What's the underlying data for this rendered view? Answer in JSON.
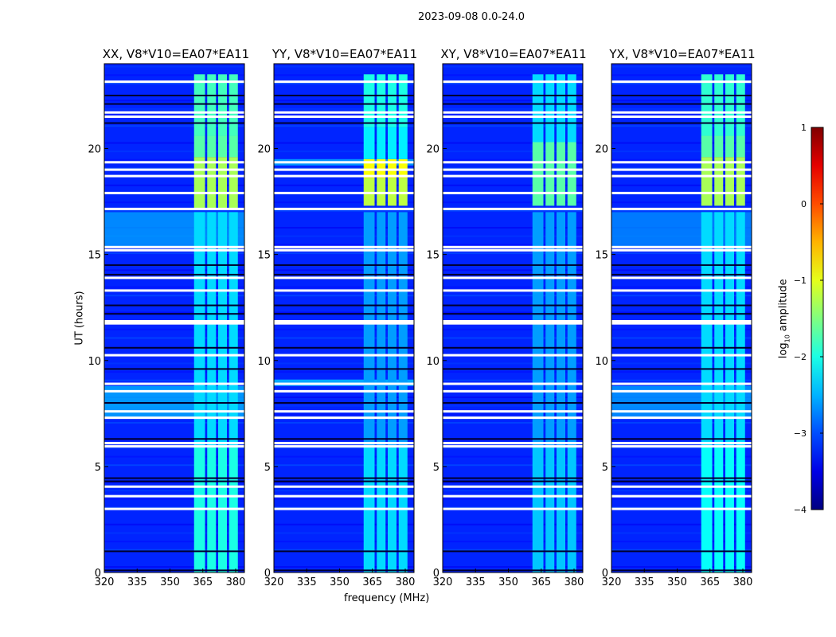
{
  "chart_data": {
    "type": "heatmap",
    "title": "2023-09-08 0.0-24.0",
    "xlabel": "frequency (MHz)",
    "ylabel": "UT (hours)",
    "xlim": [
      320,
      384
    ],
    "ylim": [
      0,
      24
    ],
    "xticks": [
      "320",
      "335",
      "350",
      "365",
      "380"
    ],
    "xtick_values": [
      320,
      335,
      350,
      365,
      380
    ],
    "yticks": [
      "0",
      "5",
      "10",
      "15",
      "20"
    ],
    "ytick_values": [
      0,
      5,
      10,
      15,
      20
    ],
    "colorbar": {
      "label": "log10 amplitude",
      "label_main": "log",
      "label_sub": "10",
      "label_rest": " amplitude",
      "range": [
        -4,
        1
      ],
      "ticks": [
        "1",
        "0",
        "−1",
        "−2",
        "−3",
        "−4"
      ],
      "tick_values": [
        1,
        0,
        -1,
        -2,
        -3,
        -4
      ],
      "colormap": "jet"
    },
    "background_level": -3.2,
    "flagged_hours_white": [
      23.15,
      21.7,
      21.5,
      19.35,
      19.0,
      18.7,
      17.9,
      17.15,
      15.35,
      15.2,
      13.9,
      13.3,
      11.85,
      11.75,
      10.25,
      8.9,
      8.55,
      7.6,
      7.3,
      6.1,
      5.95,
      4.05,
      3.6,
      3.0
    ],
    "dark_hours": [
      22.5,
      22.1,
      21.2,
      14.5,
      14.05,
      12.6,
      12.2,
      10.6,
      9.6,
      8.0,
      6.3,
      4.45,
      4.3,
      1.0,
      0.1
    ],
    "rfi_subbands_mhz": [
      [
        361,
        366
      ],
      [
        367,
        371
      ],
      [
        372,
        376
      ],
      [
        377,
        381
      ]
    ],
    "panels": [
      {
        "title": "XX, V8*V10=EA07*EA11",
        "rfi": [
          [
            0,
            6,
            -2.0
          ],
          [
            6,
            17,
            -2.3
          ],
          [
            17.2,
            19.6,
            -1.3
          ],
          [
            19.6,
            20.6,
            -1.7
          ],
          [
            20.6,
            23.5,
            -1.8
          ]
        ],
        "broadband": [
          [
            7.3,
            8.8,
            -2.4
          ],
          [
            15.3,
            17,
            -2.5
          ]
        ]
      },
      {
        "title": "YY, V8*V10=EA07*EA11",
        "rfi": [
          [
            0,
            6,
            -2.3
          ],
          [
            6,
            17,
            -2.6
          ],
          [
            17.3,
            18.6,
            -1.2
          ],
          [
            18.6,
            19.5,
            -0.9
          ],
          [
            19.5,
            21,
            -2.2
          ],
          [
            21,
            23.5,
            -2.0
          ]
        ],
        "broadband": [
          [
            8.8,
            9.1,
            -2.3
          ],
          [
            19.2,
            19.5,
            -2.4
          ]
        ]
      },
      {
        "title": "XY, V8*V10=EA07*EA11",
        "rfi": [
          [
            0,
            6,
            -2.4
          ],
          [
            6,
            17,
            -2.6
          ],
          [
            17.3,
            20.3,
            -1.7
          ],
          [
            20.3,
            23.5,
            -2.3
          ]
        ],
        "broadband": []
      },
      {
        "title": "YX, V8*V10=EA07*EA11",
        "rfi": [
          [
            0,
            6,
            -2.1
          ],
          [
            6,
            17,
            -2.3
          ],
          [
            17.3,
            19.6,
            -1.3
          ],
          [
            19.6,
            20.6,
            -1.7
          ],
          [
            20.6,
            23.5,
            -1.9
          ]
        ],
        "broadband": [
          [
            7.3,
            8.8,
            -2.5
          ],
          [
            15.3,
            17,
            -2.6
          ]
        ]
      }
    ]
  }
}
